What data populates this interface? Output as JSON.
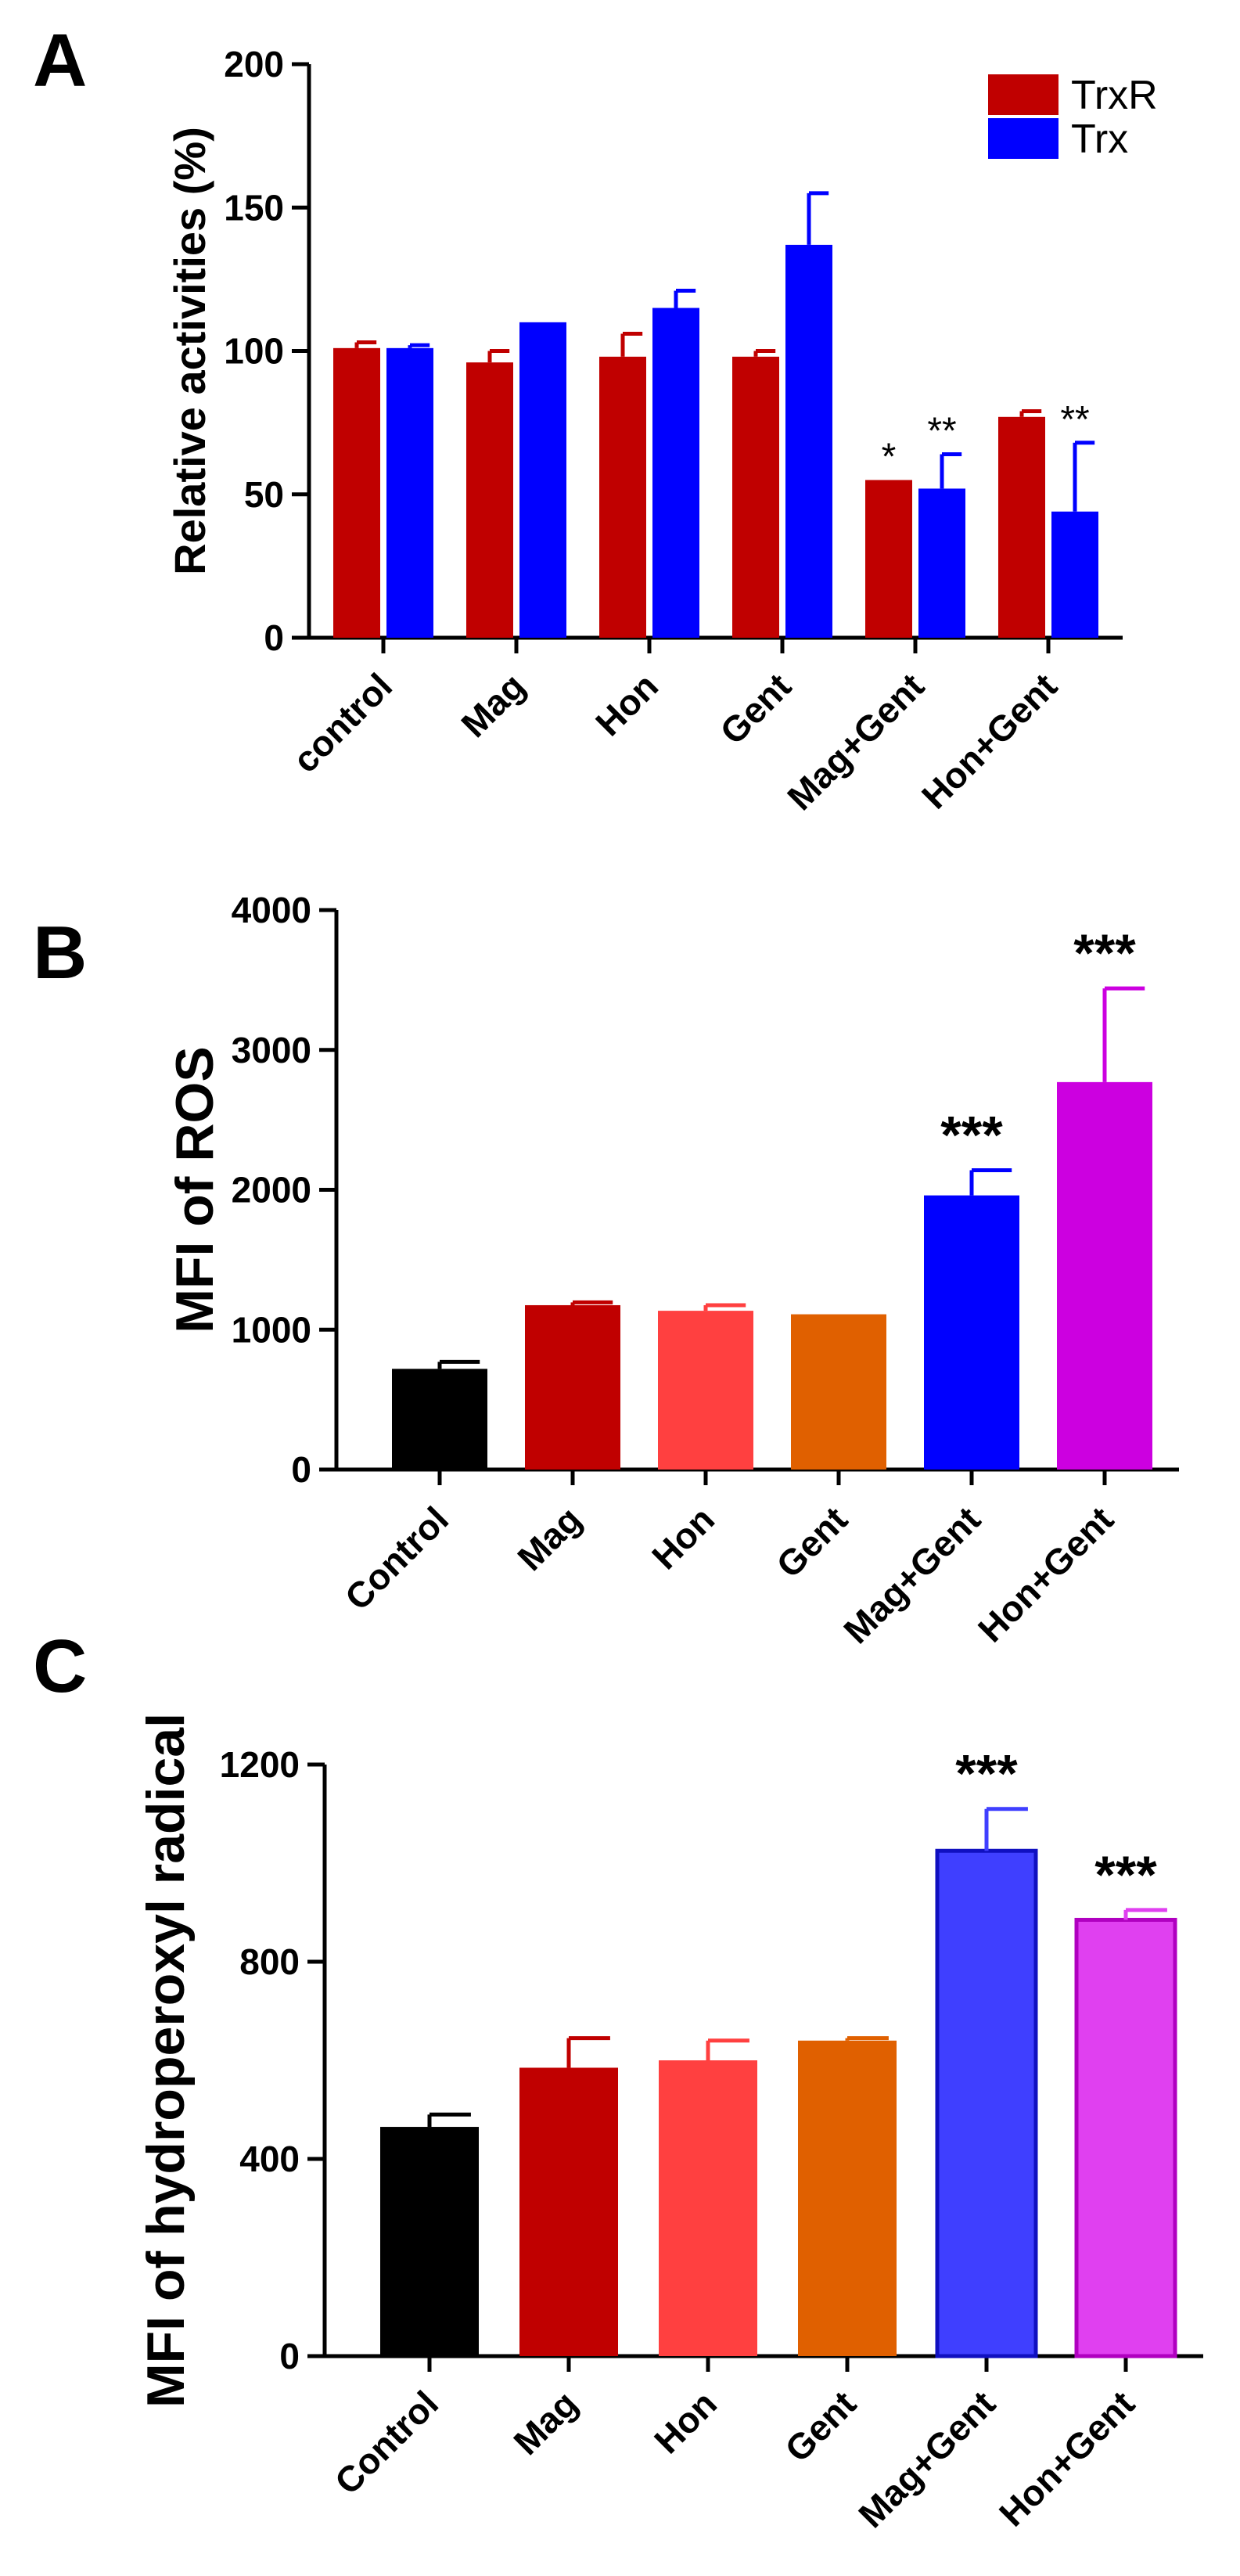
{
  "panels": [
    {
      "letter": "A",
      "chart_data": {
        "type": "bar",
        "title": "",
        "xlabel": "",
        "ylabel": "Relative activities (%)",
        "ylim": [
          0,
          200
        ],
        "yticks": [
          0,
          50,
          100,
          150,
          200
        ],
        "categories": [
          "control",
          "Mag",
          "Hon",
          "Gent",
          "Mag+Gent",
          "Hon+Gent"
        ],
        "legend_position": "top-right",
        "series": [
          {
            "name": "TrxR",
            "color": "#C00000",
            "values": [
              101,
              96,
              98,
              98,
              55,
              77
            ],
            "errors": [
              2,
              4,
              8,
              2,
              0,
              2
            ]
          },
          {
            "name": "Trx",
            "color": "#0000FF",
            "values": [
              101,
              110,
              115,
              137,
              52,
              44
            ],
            "errors": [
              1,
              0,
              6,
              18,
              12,
              24
            ]
          }
        ],
        "annotations": [
          {
            "category": "Mag+Gent",
            "series": "TrxR",
            "text": "*"
          },
          {
            "category": "Mag+Gent",
            "series": "Trx",
            "text": "**"
          },
          {
            "category": "Hon+Gent",
            "series": "Trx",
            "text": "**"
          }
        ]
      }
    },
    {
      "letter": "B",
      "chart_data": {
        "type": "bar",
        "title": "",
        "xlabel": "",
        "ylabel": "MFI of ROS",
        "ylim": [
          0,
          4000
        ],
        "yticks": [
          0,
          1000,
          2000,
          3000,
          4000
        ],
        "categories": [
          "Control",
          "Mag",
          "Hon",
          "Gent",
          "Mag+Gent",
          "Hon+Gent"
        ],
        "values": [
          720,
          1175,
          1135,
          1110,
          1960,
          2770
        ],
        "errors": [
          50,
          20,
          40,
          0,
          180,
          670
        ],
        "colors": [
          "#000000",
          "#C00000",
          "#FF4040",
          "#E06000",
          "#0000FF",
          "#CC00E0"
        ],
        "annotations": [
          {
            "category": "Mag+Gent",
            "text": "***"
          },
          {
            "category": "Hon+Gent",
            "text": "***"
          }
        ]
      }
    },
    {
      "letter": "C",
      "chart_data": {
        "type": "bar",
        "title": "",
        "xlabel": "",
        "ylabel": "MFI of hydroperoxyl radical",
        "ylim": [
          0,
          1200
        ],
        "yticks": [
          0,
          400,
          800,
          1200
        ],
        "categories": [
          "Control",
          "Mag",
          "Hon",
          "Gent",
          "Mag+Gent",
          "Hon+Gent"
        ],
        "values": [
          465,
          585,
          600,
          640,
          1025,
          885
        ],
        "errors": [
          25,
          60,
          40,
          5,
          85,
          20
        ],
        "colors": [
          "#000000",
          "#C00000",
          "#FF4040",
          "#E06000",
          "#3F3FFF",
          "#E040F0"
        ],
        "annotations": [
          {
            "category": "Mag+Gent",
            "text": "***"
          },
          {
            "category": "Hon+Gent",
            "text": "***"
          }
        ]
      }
    }
  ]
}
